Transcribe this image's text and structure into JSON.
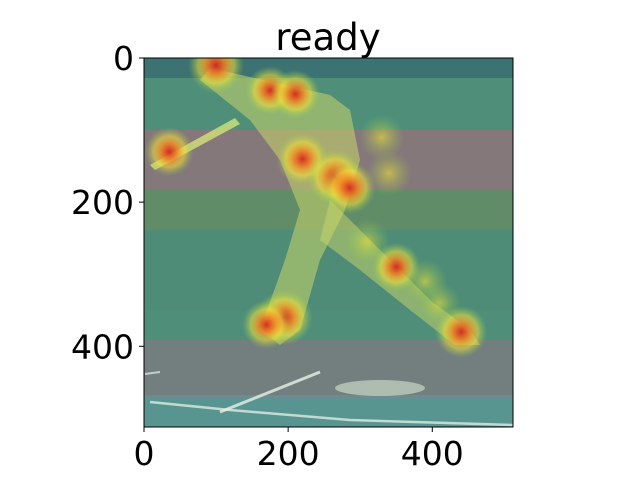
{
  "chart_data": {
    "type": "heatmap",
    "title": "ready",
    "xlabel": "",
    "ylabel": "",
    "x_ticks": [
      0,
      200,
      400
    ],
    "y_ticks": [
      0,
      200,
      400
    ],
    "xlim": [
      0,
      512
    ],
    "ylim": [
      512,
      0
    ],
    "y_axis_inverted": true,
    "grid": false,
    "legend": "none",
    "image_content": "baseball batter mid-swing on a field, overlaid with a jet-colormap saliency heatmap",
    "colormap": [
      "#1f4f7a",
      "#2f9a8a",
      "#8fcf4a",
      "#f2e23a",
      "#f08a24",
      "#d6261f"
    ],
    "hotspots": [
      {
        "x": 100,
        "y": 10,
        "intensity": 1.0
      },
      {
        "x": 175,
        "y": 45,
        "intensity": 0.8
      },
      {
        "x": 210,
        "y": 50,
        "intensity": 0.8
      },
      {
        "x": 35,
        "y": 130,
        "intensity": 0.8
      },
      {
        "x": 220,
        "y": 140,
        "intensity": 0.9
      },
      {
        "x": 265,
        "y": 165,
        "intensity": 1.0
      },
      {
        "x": 285,
        "y": 180,
        "intensity": 0.9
      },
      {
        "x": 340,
        "y": 160,
        "intensity": 0.7
      },
      {
        "x": 310,
        "y": 255,
        "intensity": 0.7
      },
      {
        "x": 350,
        "y": 290,
        "intensity": 0.8
      },
      {
        "x": 390,
        "y": 310,
        "intensity": 0.7
      },
      {
        "x": 410,
        "y": 340,
        "intensity": 0.6
      },
      {
        "x": 195,
        "y": 360,
        "intensity": 1.0
      },
      {
        "x": 170,
        "y": 370,
        "intensity": 0.8
      },
      {
        "x": 440,
        "y": 380,
        "intensity": 0.9
      },
      {
        "x": 330,
        "y": 110,
        "intensity": 0.7
      }
    ]
  }
}
